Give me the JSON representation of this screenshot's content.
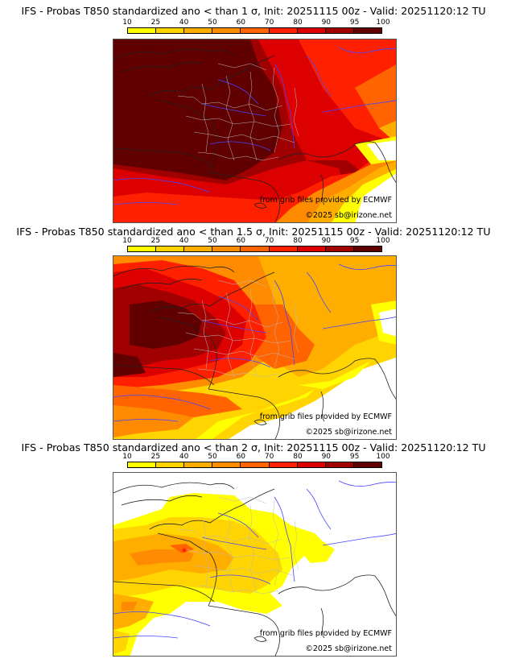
{
  "colorbar": {
    "ticks": [
      "10",
      "25",
      "40",
      "50",
      "60",
      "70",
      "80",
      "90",
      "95",
      "100"
    ],
    "colors": [
      "#ffff00",
      "#ffd400",
      "#ffae00",
      "#ff8c00",
      "#ff6400",
      "#ff2000",
      "#dd0000",
      "#a00000",
      "#600000"
    ]
  },
  "panels": [
    {
      "title": "IFS - Probas T850  standardized ano < than 1 σ, Init: 20251115 00z - Valid: 20251120:12 TU",
      "credit_source": "from grib files provided by ECMWF",
      "credit_copyright": "©2025 sb@irizone.net",
      "threshold": "1 σ"
    },
    {
      "title": "IFS - Probas T850  standardized ano < than 1.5 σ, Init: 20251115 00z - Valid: 20251120:12 TU",
      "credit_source": "from grib files provided by ECMWF",
      "credit_copyright": "©2025 sb@irizone.net",
      "threshold": "1.5 σ"
    },
    {
      "title": "IFS - Probas T850  standardized ano < than 2 σ, Init: 20251115 00z - Valid: 20251120:12 TU",
      "credit_source": "from grib files provided by ECMWF",
      "credit_copyright": "©2025 sb@irizone.net",
      "threshold": "2 σ"
    }
  ]
}
